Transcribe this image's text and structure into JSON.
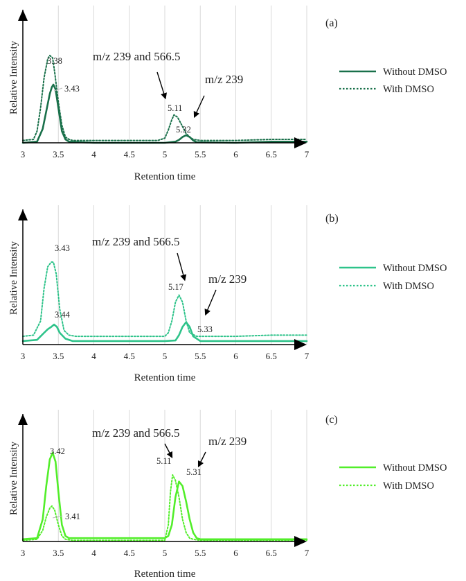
{
  "chart_data": [
    {
      "panel": "(a)",
      "type": "line",
      "xlabel": "Retention time",
      "ylabel": "Relative Intensity",
      "xlim": [
        3,
        7
      ],
      "ylim": [
        0,
        1
      ],
      "x_ticks": [
        "3",
        "3.5",
        "4",
        "4.5",
        "5",
        "5.5",
        "6",
        "6.5",
        "7"
      ],
      "grid": "vertical",
      "color": "#19704a",
      "legend": {
        "position": "right",
        "entries": [
          "Without DMSO",
          "With DMSO"
        ]
      },
      "series": [
        {
          "name": "Without DMSO",
          "style": "solid",
          "x": [
            3.0,
            3.2,
            3.28,
            3.34,
            3.38,
            3.41,
            3.43,
            3.46,
            3.5,
            3.55,
            3.6,
            3.65,
            4.0,
            4.5,
            5.0,
            5.15,
            5.2,
            5.25,
            5.3,
            5.35,
            5.4,
            5.45,
            6.0,
            6.5,
            7.0
          ],
          "y": [
            0.0,
            0.01,
            0.12,
            0.3,
            0.42,
            0.48,
            0.5,
            0.46,
            0.3,
            0.1,
            0.03,
            0.01,
            0.0,
            0.0,
            0.0,
            0.01,
            0.025,
            0.05,
            0.065,
            0.05,
            0.02,
            0.005,
            0.0,
            0.01,
            0.01
          ]
        },
        {
          "name": "With DMSO",
          "style": "dotted",
          "x": [
            3.0,
            3.15,
            3.2,
            3.25,
            3.3,
            3.35,
            3.38,
            3.42,
            3.45,
            3.5,
            3.55,
            3.6,
            3.65,
            3.7,
            4.0,
            4.5,
            4.9,
            5.0,
            5.05,
            5.1,
            5.13,
            5.18,
            5.25,
            5.3,
            5.35,
            5.4,
            5.5,
            6.0,
            6.5,
            7.0
          ],
          "y": [
            0.02,
            0.03,
            0.1,
            0.3,
            0.56,
            0.72,
            0.75,
            0.73,
            0.6,
            0.35,
            0.15,
            0.05,
            0.03,
            0.02,
            0.02,
            0.02,
            0.02,
            0.04,
            0.11,
            0.2,
            0.24,
            0.22,
            0.14,
            0.08,
            0.05,
            0.03,
            0.02,
            0.02,
            0.03,
            0.03
          ]
        }
      ],
      "peak_labels": [
        "3.38",
        "3.43",
        "5.11",
        "5.32"
      ],
      "annotations": [
        "m/z 239 and 566.5",
        "m/z 239"
      ]
    },
    {
      "panel": "(b)",
      "type": "line",
      "xlabel": "Retention time",
      "ylabel": "Relative Intensity",
      "xlim": [
        3,
        7
      ],
      "ylim": [
        0,
        1
      ],
      "x_ticks": [
        "3",
        "3.5",
        "4",
        "4.5",
        "5",
        "5.5",
        "6",
        "6.5",
        "7"
      ],
      "grid": "vertical",
      "color": "#2ec38a",
      "legend": {
        "position": "right",
        "entries": [
          "Without DMSO",
          "With DMSO"
        ]
      },
      "series": [
        {
          "name": "Without DMSO",
          "style": "solid",
          "x": [
            3.0,
            3.2,
            3.3,
            3.35,
            3.4,
            3.44,
            3.48,
            3.52,
            3.6,
            3.7,
            4.0,
            4.5,
            5.0,
            5.15,
            5.2,
            5.25,
            5.3,
            5.35,
            5.4,
            5.5,
            6.0,
            6.5,
            7.0
          ],
          "y": [
            0.03,
            0.04,
            0.1,
            0.13,
            0.15,
            0.17,
            0.15,
            0.1,
            0.05,
            0.03,
            0.03,
            0.03,
            0.03,
            0.035,
            0.08,
            0.15,
            0.19,
            0.15,
            0.07,
            0.03,
            0.03,
            0.03,
            0.03
          ]
        },
        {
          "name": "With DMSO",
          "style": "dotted",
          "x": [
            3.0,
            3.15,
            3.25,
            3.3,
            3.35,
            3.4,
            3.43,
            3.47,
            3.52,
            3.58,
            3.65,
            3.75,
            4.0,
            4.5,
            5.0,
            5.05,
            5.1,
            5.15,
            5.2,
            5.25,
            5.3,
            5.35,
            5.45,
            6.0,
            6.5,
            7.0
          ],
          "y": [
            0.07,
            0.08,
            0.2,
            0.48,
            0.66,
            0.7,
            0.7,
            0.6,
            0.3,
            0.12,
            0.08,
            0.07,
            0.07,
            0.07,
            0.07,
            0.1,
            0.2,
            0.36,
            0.42,
            0.36,
            0.2,
            0.1,
            0.07,
            0.07,
            0.08,
            0.08
          ]
        }
      ],
      "peak_labels": [
        "3.43",
        "3.44",
        "5.17",
        "5.33"
      ],
      "annotations": [
        "m/z 239 and 566.5",
        "m/z 239"
      ]
    },
    {
      "panel": "(c)",
      "type": "line",
      "xlabel": "Retention time",
      "ylabel": "Relative Intensity",
      "xlim": [
        3,
        7
      ],
      "ylim": [
        0,
        1
      ],
      "x_ticks": [
        "3",
        "3.5",
        "4",
        "4.5",
        "5",
        "5.5",
        "6",
        "6.5",
        "7"
      ],
      "grid": "vertical",
      "color": "#52ee2a",
      "legend": {
        "position": "right",
        "entries": [
          "Without DMSO",
          "With DMSO"
        ]
      },
      "series": [
        {
          "name": "Without DMSO",
          "style": "solid",
          "x": [
            3.0,
            3.2,
            3.28,
            3.33,
            3.38,
            3.42,
            3.46,
            3.5,
            3.55,
            3.6,
            3.65,
            3.75,
            4.0,
            4.5,
            5.0,
            5.05,
            5.1,
            5.15,
            5.2,
            5.25,
            5.3,
            5.35,
            5.4,
            5.45,
            5.5,
            6.0,
            6.5,
            7.0
          ],
          "y": [
            0.02,
            0.03,
            0.2,
            0.5,
            0.74,
            0.8,
            0.72,
            0.45,
            0.15,
            0.05,
            0.03,
            0.03,
            0.03,
            0.03,
            0.03,
            0.05,
            0.15,
            0.4,
            0.54,
            0.5,
            0.36,
            0.2,
            0.08,
            0.03,
            0.02,
            0.02,
            0.02,
            0.02
          ]
        },
        {
          "name": "With DMSO",
          "style": "dotted",
          "x": [
            3.0,
            3.2,
            3.28,
            3.33,
            3.38,
            3.41,
            3.45,
            3.5,
            3.55,
            3.6,
            3.7,
            4.0,
            4.5,
            5.0,
            5.05,
            5.08,
            5.11,
            5.15,
            5.2,
            5.25,
            5.3,
            5.35,
            5.4,
            5.5,
            6.0,
            6.5,
            7.0
          ],
          "y": [
            0.01,
            0.02,
            0.1,
            0.22,
            0.3,
            0.32,
            0.28,
            0.15,
            0.05,
            0.02,
            0.01,
            0.01,
            0.01,
            0.01,
            0.15,
            0.45,
            0.6,
            0.55,
            0.4,
            0.2,
            0.08,
            0.03,
            0.02,
            0.01,
            0.01,
            0.01,
            0.01
          ]
        }
      ],
      "peak_labels": [
        "3.42",
        "3.41",
        "5.11",
        "5.31"
      ],
      "annotations": [
        "m/z 239 and 566.5",
        "m/z 239"
      ]
    }
  ]
}
